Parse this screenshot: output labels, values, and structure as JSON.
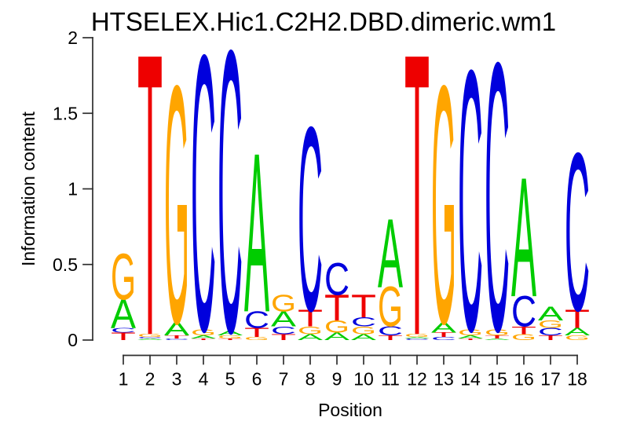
{
  "chart_data": {
    "type": "sequence-logo",
    "title": "HTSELEX.Hic1.C2H2.DBD.dimeric.wm1",
    "xlabel": "Position",
    "ylabel": "Information content",
    "ylim": [
      0,
      2
    ],
    "ytick_values": [
      0,
      0.5,
      1,
      1.5,
      2
    ],
    "ytick_labels": [
      "0",
      "0.5",
      "1",
      "1.5",
      "2"
    ],
    "positions": [
      "1",
      "2",
      "3",
      "4",
      "5",
      "6",
      "7",
      "8",
      "9",
      "10",
      "11",
      "12",
      "13",
      "14",
      "15",
      "16",
      "17",
      "18"
    ],
    "grid": "off",
    "legend": "none",
    "units": "bits",
    "stack_order": "bottom-to-top",
    "letter_colors": {
      "A": "#00CC00",
      "C": "#0000DD",
      "G": "#FFA500",
      "T": "#EE0000"
    },
    "stacks": [
      [
        {
          "letter": "T",
          "bits": 0.05
        },
        {
          "letter": "C",
          "bits": 0.03
        },
        {
          "letter": "A",
          "bits": 0.19
        },
        {
          "letter": "G",
          "bits": 0.3
        }
      ],
      [
        {
          "letter": "A",
          "bits": 0.01
        },
        {
          "letter": "C",
          "bits": 0.01
        },
        {
          "letter": "G",
          "bits": 0.02
        },
        {
          "letter": "T",
          "bits": 1.84
        }
      ],
      [
        {
          "letter": "C",
          "bits": 0.01
        },
        {
          "letter": "T",
          "bits": 0.02
        },
        {
          "letter": "A",
          "bits": 0.09
        },
        {
          "letter": "G",
          "bits": 1.55
        }
      ],
      [
        {
          "letter": "T",
          "bits": 0.01
        },
        {
          "letter": "A",
          "bits": 0.02
        },
        {
          "letter": "G",
          "bits": 0.04
        },
        {
          "letter": "C",
          "bits": 1.8
        }
      ],
      [
        {
          "letter": "T",
          "bits": 0.01
        },
        {
          "letter": "G",
          "bits": 0.02
        },
        {
          "letter": "A",
          "bits": 0.03
        },
        {
          "letter": "C",
          "bits": 1.84
        }
      ],
      [
        {
          "letter": "G",
          "bits": 0.02
        },
        {
          "letter": "T",
          "bits": 0.06
        },
        {
          "letter": "C",
          "bits": 0.11
        },
        {
          "letter": "A",
          "bits": 1.04
        }
      ],
      [
        {
          "letter": "T",
          "bits": 0.04
        },
        {
          "letter": "C",
          "bits": 0.05
        },
        {
          "letter": "A",
          "bits": 0.1
        },
        {
          "letter": "G",
          "bits": 0.11
        }
      ],
      [
        {
          "letter": "A",
          "bits": 0.04
        },
        {
          "letter": "G",
          "bits": 0.05
        },
        {
          "letter": "T",
          "bits": 0.11
        },
        {
          "letter": "C",
          "bits": 1.2
        }
      ],
      [
        {
          "letter": "A",
          "bits": 0.05
        },
        {
          "letter": "G",
          "bits": 0.08
        },
        {
          "letter": "T",
          "bits": 0.17
        },
        {
          "letter": "C",
          "bits": 0.21
        }
      ],
      [
        {
          "letter": "A",
          "bits": 0.04
        },
        {
          "letter": "G",
          "bits": 0.05
        },
        {
          "letter": "C",
          "bits": 0.06
        },
        {
          "letter": "T",
          "bits": 0.15
        }
      ],
      [
        {
          "letter": "T",
          "bits": 0.03
        },
        {
          "letter": "C",
          "bits": 0.06
        },
        {
          "letter": "G",
          "bits": 0.26
        },
        {
          "letter": "A",
          "bits": 0.45
        }
      ],
      [
        {
          "letter": "C",
          "bits": 0.01
        },
        {
          "letter": "A",
          "bits": 0.01
        },
        {
          "letter": "G",
          "bits": 0.02
        },
        {
          "letter": "T",
          "bits": 1.84
        }
      ],
      [
        {
          "letter": "C",
          "bits": 0.02
        },
        {
          "letter": "T",
          "bits": 0.03
        },
        {
          "letter": "A",
          "bits": 0.07
        },
        {
          "letter": "G",
          "bits": 1.55
        }
      ],
      [
        {
          "letter": "T",
          "bits": 0.01
        },
        {
          "letter": "A",
          "bits": 0.02
        },
        {
          "letter": "G",
          "bits": 0.04
        },
        {
          "letter": "C",
          "bits": 1.7
        }
      ],
      [
        {
          "letter": "A",
          "bits": 0.01
        },
        {
          "letter": "T",
          "bits": 0.02
        },
        {
          "letter": "G",
          "bits": 0.04
        },
        {
          "letter": "C",
          "bits": 1.75
        }
      ],
      [
        {
          "letter": "G",
          "bits": 0.04
        },
        {
          "letter": "T",
          "bits": 0.05
        },
        {
          "letter": "C",
          "bits": 0.2
        },
        {
          "letter": "A",
          "bits": 0.78
        }
      ],
      [
        {
          "letter": "T",
          "bits": 0.03
        },
        {
          "letter": "C",
          "bits": 0.05
        },
        {
          "letter": "G",
          "bits": 0.05
        },
        {
          "letter": "A",
          "bits": 0.09
        }
      ],
      [
        {
          "letter": "G",
          "bits": 0.03
        },
        {
          "letter": "A",
          "bits": 0.05
        },
        {
          "letter": "T",
          "bits": 0.12
        },
        {
          "letter": "C",
          "bits": 1.03
        }
      ]
    ]
  }
}
